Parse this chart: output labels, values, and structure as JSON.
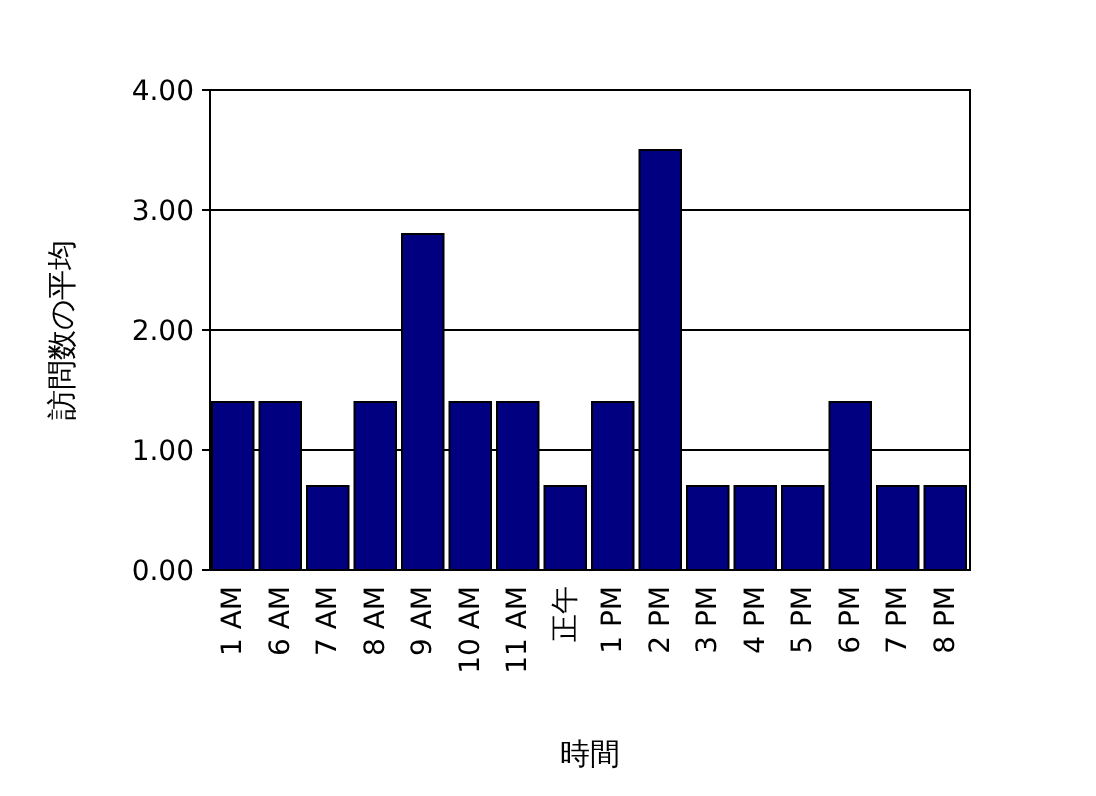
{
  "chart_data": {
    "type": "bar",
    "xlabel": "時間",
    "ylabel": "訪問数の平均",
    "categories": [
      "1 AM",
      "6 AM",
      "7 AM",
      "8 AM",
      "9 AM",
      "10 AM",
      "11 AM",
      "正午",
      "1 PM",
      "2 PM",
      "3 PM",
      "4 PM",
      "5 PM",
      "6 PM",
      "7 PM",
      "8 PM"
    ],
    "series": [
      {
        "color": "#000080",
        "values": [
          1.4,
          1.4,
          0.7,
          1.4,
          2.8,
          1.4,
          1.4,
          0.7,
          1.4,
          3.5,
          0.7,
          0.7,
          0.7,
          1.4,
          0.7,
          0.7
        ]
      }
    ],
    "ylim": [
      0,
      4
    ],
    "yticks": [
      {
        "value": 0,
        "label": "0.00"
      },
      {
        "value": 1,
        "label": "1.00"
      },
      {
        "value": 2,
        "label": "2.00"
      },
      {
        "value": 3,
        "label": "3.00"
      },
      {
        "value": 4,
        "label": "4.00"
      }
    ],
    "grid": "y"
  }
}
